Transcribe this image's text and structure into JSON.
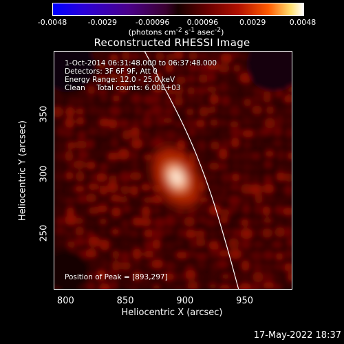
{
  "colorbar": {
    "ticks": [
      "-0.0048",
      "-0.0029",
      "-0.00096",
      "0.00096",
      "0.0029",
      "0.0048"
    ],
    "unit_prefix": "(photons cm",
    "unit_exp1": "-2",
    "unit_mid": " s",
    "unit_exp2": "-1",
    "unit_mid2": " asec",
    "unit_exp3": "-2",
    "unit_suffix": ")"
  },
  "chart_data": {
    "type": "heatmap",
    "title": "Reconstructed RHESSI Image",
    "xlabel": "Heliocentric X (arcsec)",
    "ylabel": "Heliocentric Y (arcsec)",
    "xlim": [
      790,
      990
    ],
    "ylim": [
      203,
      403
    ],
    "xticks": [
      "800",
      "850",
      "900",
      "950"
    ],
    "yticks": [
      "250",
      "300",
      "350"
    ],
    "peak": {
      "x": 893,
      "y": 297
    },
    "limb_points": [
      [
        866,
        403
      ],
      [
        900,
        340
      ],
      [
        920,
        290
      ],
      [
        935,
        240
      ],
      [
        945,
        203
      ]
    ],
    "color_range": [
      -0.0048,
      0.0048
    ],
    "colormap": "blue-black-red-yellow-white"
  },
  "annotations": {
    "time_range": "1-Oct-2014 06:31:48.000 to 06:37:48.000",
    "detectors": "Detectors: 3F 6F 9F, Att 0",
    "energy": "Energy Range: 12.0 - 25.0 keV",
    "method": "Clean     Total counts: 6.00E+03",
    "peak_label": "Position of Peak = [893,297]"
  },
  "timestamp": "17-May-2022 18:37"
}
